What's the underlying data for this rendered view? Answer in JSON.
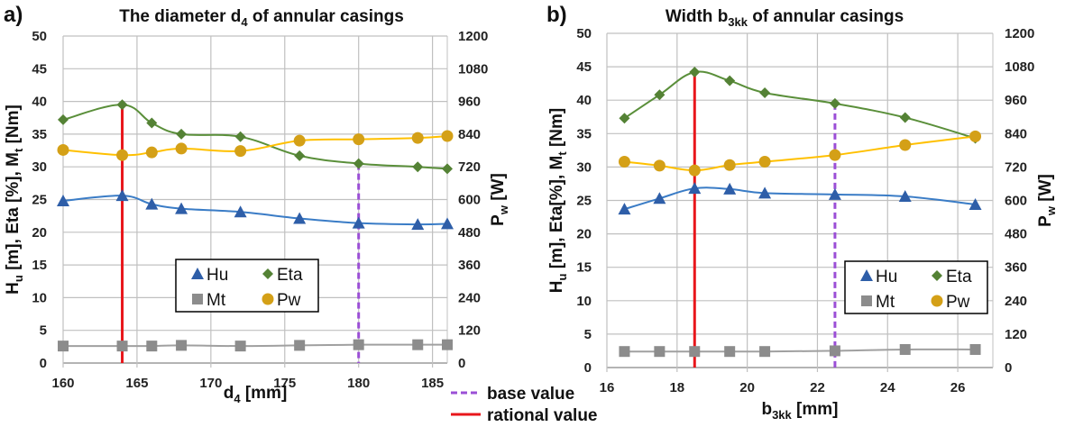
{
  "legend_bottom": {
    "base": "base value",
    "rational": "rational value",
    "base_color": "#9b4fd6",
    "rational_color": "#e8161b"
  },
  "colors": {
    "Hu": "#2e5ea8",
    "Eta": "#548235",
    "Mt": "#8c8c8c",
    "Pw": "#d4a017",
    "Hu_line": "#3a7cc6",
    "Eta_line": "#5a8f3a",
    "Mt_line": "#a0a0a0",
    "Pw_line": "#ffc000"
  },
  "chart_data": [
    {
      "type": "line",
      "panel_label": "a)",
      "title": [
        {
          "t": "The diameter d"
        },
        {
          "t": "4",
          "sub": true
        },
        {
          "t": " of annular casings"
        }
      ],
      "xlabel": [
        {
          "t": "d"
        },
        {
          "t": "4",
          "sub": true
        },
        {
          "t": " [mm]"
        }
      ],
      "ylabel": [
        {
          "t": "H"
        },
        {
          "t": "u",
          "sub": true
        },
        {
          "t": " [m],  Eta [%],  M"
        },
        {
          "t": "t",
          "sub": true
        },
        {
          "t": " [Nm]"
        }
      ],
      "y2label": [
        {
          "t": "P"
        },
        {
          "t": "w",
          "sub": true
        },
        {
          "t": " [W]"
        }
      ],
      "xlim": [
        160,
        186
      ],
      "xticks": [
        160,
        165,
        170,
        175,
        180,
        185
      ],
      "ylim": [
        0,
        50
      ],
      "yticks": [
        0,
        5,
        10,
        15,
        20,
        25,
        30,
        35,
        40,
        45,
        50
      ],
      "y2lim": [
        0,
        1200
      ],
      "y2ticks": [
        0,
        120,
        240,
        360,
        480,
        600,
        720,
        840,
        960,
        1080,
        1200
      ],
      "grid": true,
      "legend": {
        "placement": "lower-center",
        "entries": [
          "Hu",
          "Eta",
          "Mt",
          "Pw"
        ]
      },
      "base_value": 180,
      "rational_value": 164,
      "x": [
        160,
        164,
        166,
        168,
        172,
        176,
        180,
        184,
        186
      ],
      "series": [
        {
          "name": "Hu",
          "axis": "left",
          "values": [
            24.8,
            25.6,
            24.3,
            23.6,
            23.1,
            22.1,
            21.4,
            21.2,
            21.3
          ]
        },
        {
          "name": "Eta",
          "axis": "left",
          "values": [
            37.2,
            39.5,
            36.7,
            35.0,
            34.6,
            31.7,
            30.5,
            30.0,
            29.7
          ]
        },
        {
          "name": "Mt",
          "axis": "left",
          "values": [
            2.6,
            2.6,
            2.6,
            2.7,
            2.6,
            2.7,
            2.8,
            2.8,
            2.8
          ]
        },
        {
          "name": "Pw",
          "axis": "right",
          "values": [
            782,
            763,
            773,
            787,
            778,
            816,
            821,
            826,
            833
          ]
        }
      ]
    },
    {
      "type": "line",
      "panel_label": "b)",
      "title": [
        {
          "t": "Width b"
        },
        {
          "t": "3kk",
          "sub": true
        },
        {
          "t": " of annular casings"
        }
      ],
      "xlabel": [
        {
          "t": "b"
        },
        {
          "t": "3kk",
          "sub": true
        },
        {
          "t": " [mm]"
        }
      ],
      "ylabel": [
        {
          "t": "H"
        },
        {
          "t": "u",
          "sub": true
        },
        {
          "t": " [m],  Eta[%],  M"
        },
        {
          "t": "t",
          "sub": true
        },
        {
          "t": " [Nm]"
        }
      ],
      "y2label": [
        {
          "t": "P"
        },
        {
          "t": "w",
          "sub": true
        },
        {
          "t": " [W]"
        }
      ],
      "xlim": [
        16,
        27
      ],
      "xticks": [
        16,
        18,
        20,
        22,
        24,
        26
      ],
      "ylim": [
        0,
        50
      ],
      "yticks": [
        0,
        5,
        10,
        15,
        20,
        25,
        30,
        35,
        40,
        45,
        50
      ],
      "y2lim": [
        0,
        1200
      ],
      "y2ticks": [
        0,
        120,
        240,
        360,
        480,
        600,
        720,
        840,
        960,
        1080,
        1200
      ],
      "grid": true,
      "legend": {
        "placement": "lower-right",
        "entries": [
          "Hu",
          "Eta",
          "Mt",
          "Pw"
        ]
      },
      "base_value": 22.5,
      "rational_value": 18.5,
      "x": [
        16.5,
        17.5,
        18.5,
        19.5,
        20.5,
        22.5,
        24.5,
        26.5
      ],
      "series": [
        {
          "name": "Hu",
          "axis": "left",
          "values": [
            23.7,
            25.3,
            26.8,
            26.7,
            26.1,
            25.9,
            25.6,
            24.4
          ]
        },
        {
          "name": "Eta",
          "axis": "left",
          "values": [
            37.3,
            40.8,
            44.2,
            42.9,
            41.1,
            39.5,
            37.4,
            34.3
          ]
        },
        {
          "name": "Mt",
          "axis": "left",
          "values": [
            2.4,
            2.4,
            2.4,
            2.4,
            2.4,
            2.5,
            2.7,
            2.7
          ]
        },
        {
          "name": "Pw",
          "axis": "right",
          "values": [
            739,
            725,
            708,
            727,
            739,
            763,
            799,
            830
          ]
        }
      ]
    }
  ]
}
